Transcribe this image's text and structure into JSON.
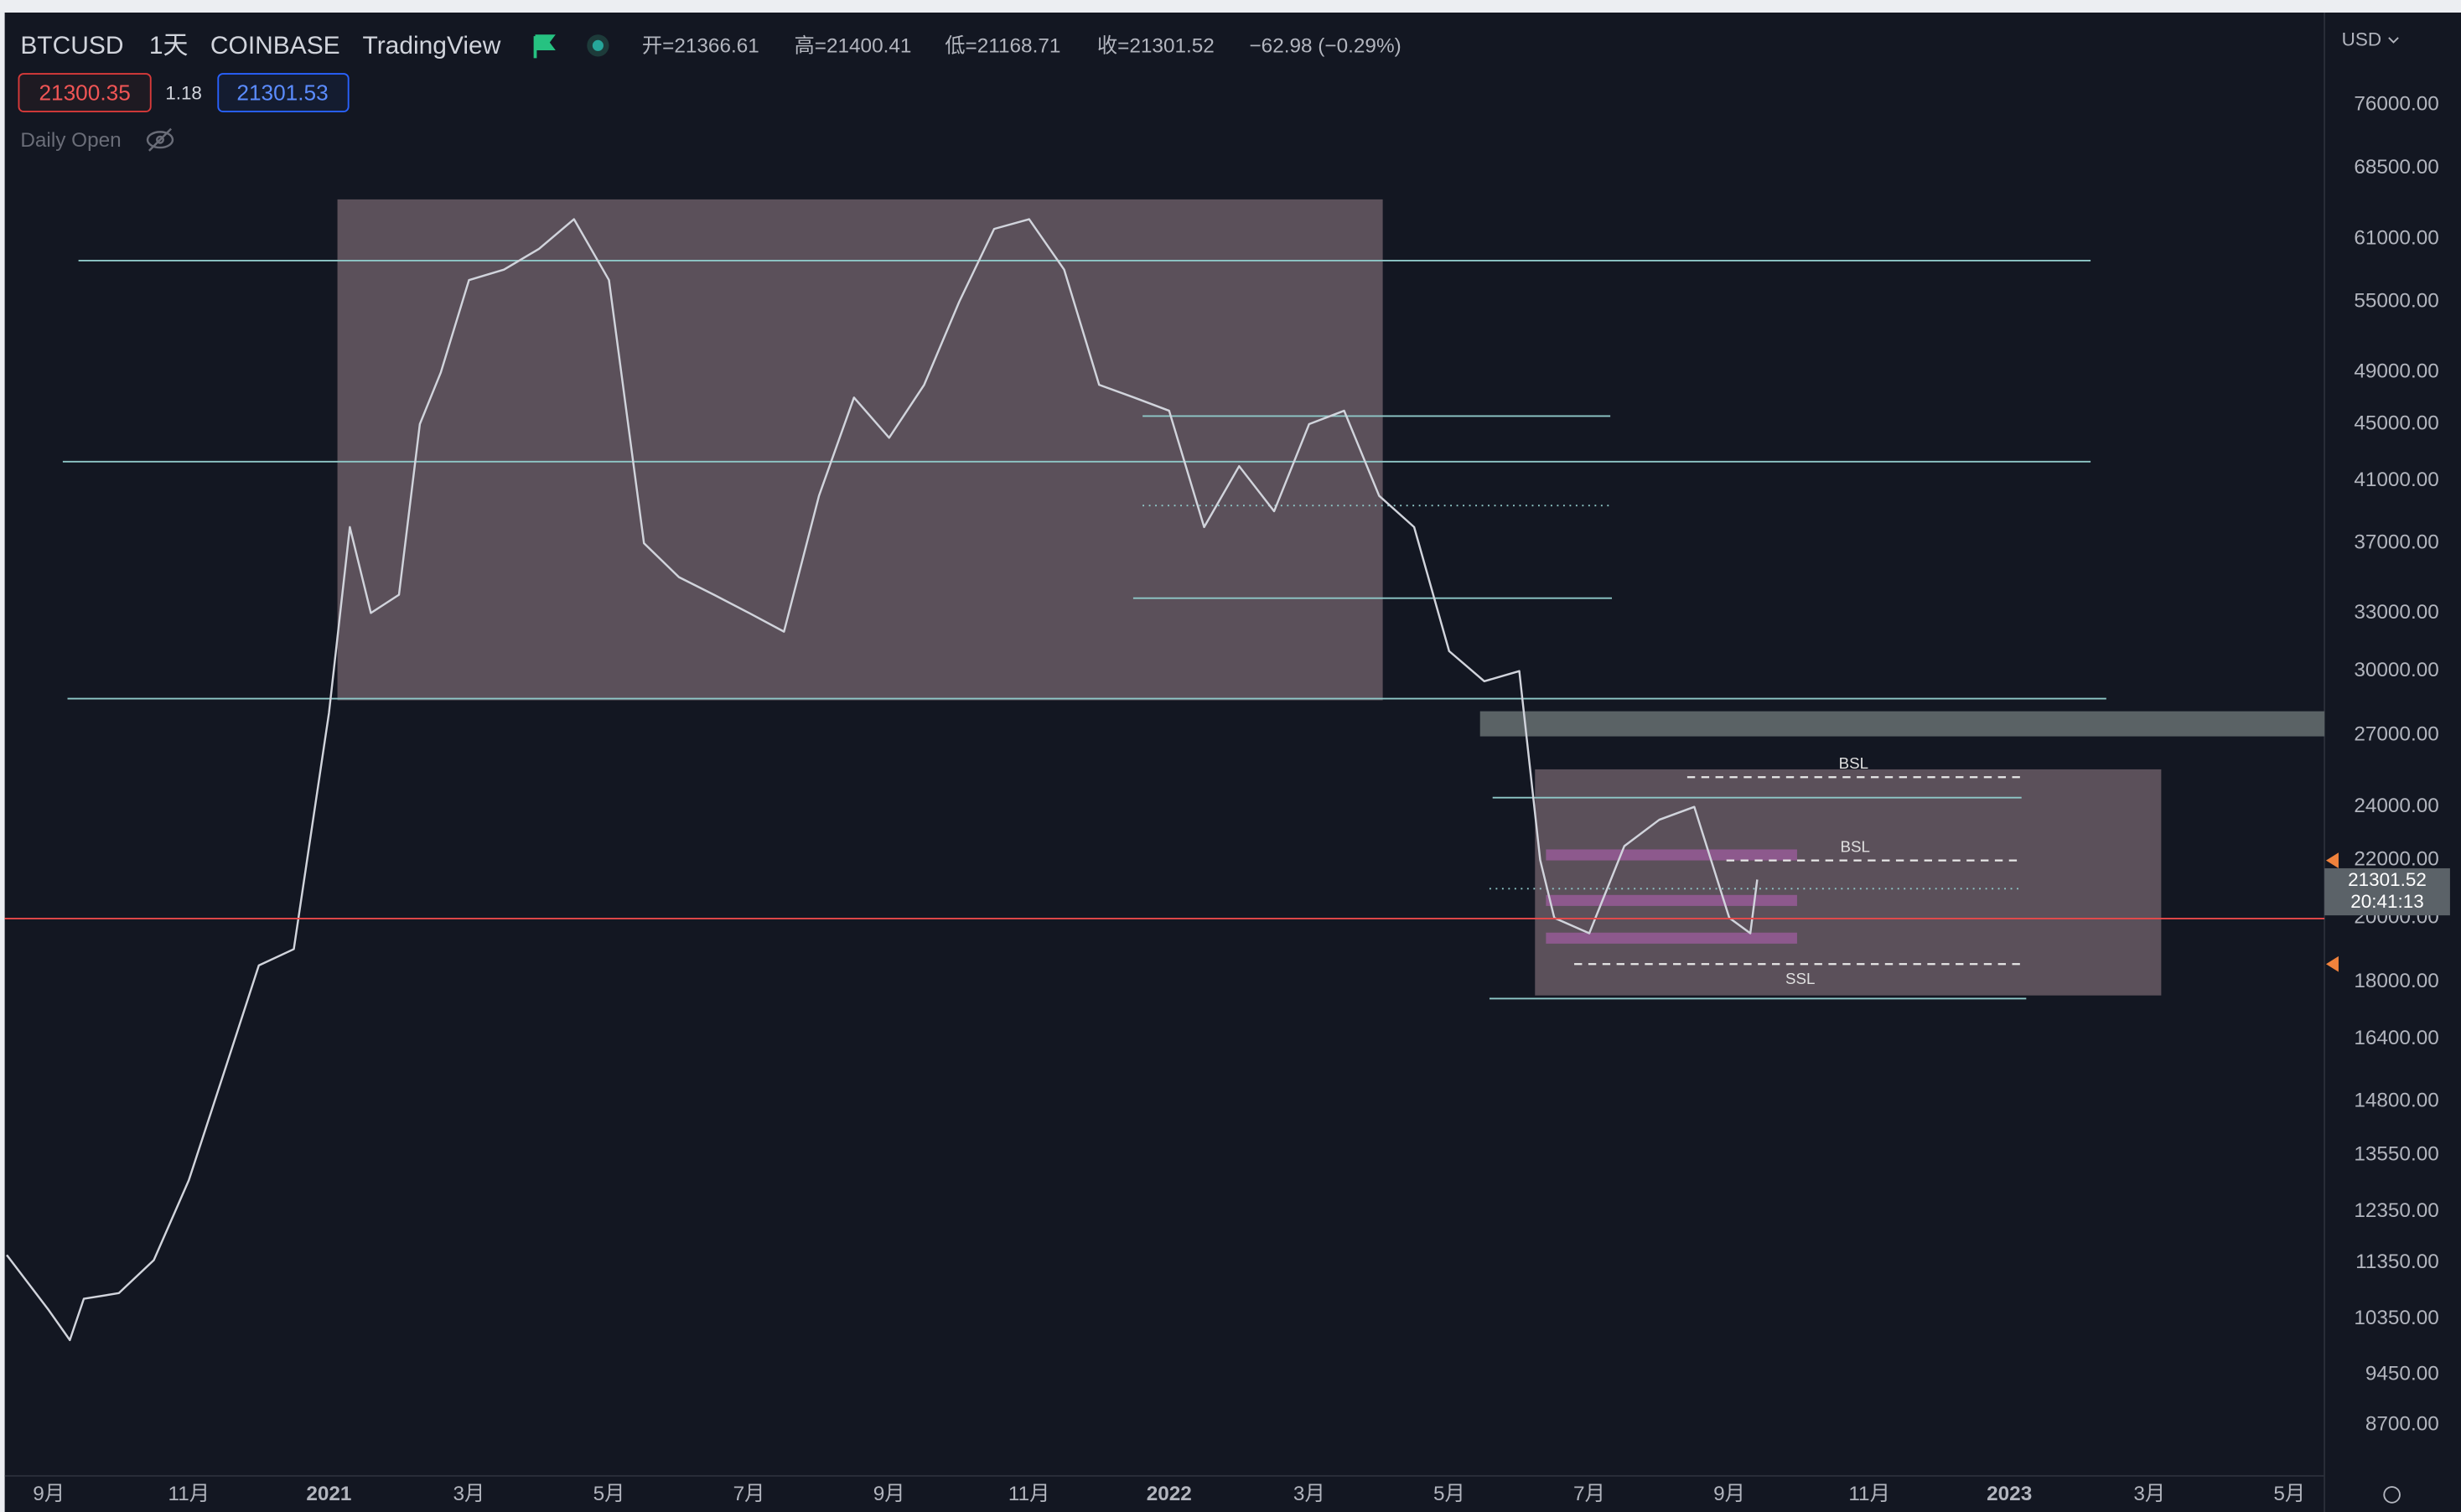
{
  "header": {
    "symbol": "BTCUSD",
    "interval": "1天",
    "exchange": "COINBASE",
    "source": "TradingView",
    "open": "开=21366.61",
    "high": "高=21400.41",
    "low": "低=21168.71",
    "close": "收=21301.52",
    "change": "−62.98 (−0.29%)",
    "bid": "21300.35",
    "spread": "1.18",
    "ask": "21301.53",
    "indicator": "Daily Open",
    "currency": "USD",
    "last_price": "21301.52",
    "countdown": "20:41:13"
  },
  "annotations": [
    "BSL",
    "BSL",
    "SSL"
  ],
  "chart_data": {
    "type": "line",
    "color": "#d1d4dc",
    "log_scale": true,
    "grid": false,
    "x": [
      -0.6,
      0,
      0.3,
      0.5,
      1,
      1.5,
      2,
      2.5,
      3,
      3.5,
      4,
      4.3,
      4.6,
      5,
      5.3,
      5.6,
      6,
      6.5,
      7,
      7.5,
      8,
      8.5,
      9,
      9.5,
      10,
      10.5,
      11,
      11.5,
      12,
      12.5,
      13,
      13.5,
      14,
      14.5,
      15,
      15.5,
      16,
      16.5,
      17,
      17.5,
      18,
      18.5,
      19,
      19.5,
      20,
      20.5,
      21,
      21.3,
      21.5,
      22,
      22.5,
      23,
      23.5,
      24,
      24.3,
      24.4
    ],
    "values": [
      11500,
      10500,
      10000,
      10700,
      10800,
      11400,
      13000,
      15500,
      18500,
      19000,
      28000,
      38000,
      33000,
      34000,
      45000,
      49000,
      57000,
      58000,
      60000,
      63000,
      57000,
      37000,
      35000,
      34000,
      33000,
      32000,
      40000,
      47000,
      44000,
      48000,
      55000,
      62000,
      63000,
      58000,
      48000,
      47000,
      46000,
      38000,
      42000,
      39000,
      45000,
      46000,
      40000,
      38000,
      31000,
      29500,
      30000,
      22000,
      20000,
      19500,
      22500,
      23500,
      24000,
      20000,
      19500,
      21301.52
    ],
    "xlim": [
      -0.63,
      32.5
    ],
    "xticks": [
      {
        "value": 0,
        "label": "9月"
      },
      {
        "value": 2,
        "label": "11月"
      },
      {
        "value": 4,
        "label": "2021"
      },
      {
        "value": 6,
        "label": "3月"
      },
      {
        "value": 8,
        "label": "5月"
      },
      {
        "value": 10,
        "label": "7月"
      },
      {
        "value": 12,
        "label": "9月"
      },
      {
        "value": 14,
        "label": "11月"
      },
      {
        "value": 16,
        "label": "2022"
      },
      {
        "value": 18,
        "label": "3月"
      },
      {
        "value": 20,
        "label": "5月"
      },
      {
        "value": 22,
        "label": "7月"
      },
      {
        "value": 24,
        "label": "9月"
      },
      {
        "value": 26,
        "label": "11月"
      },
      {
        "value": 28,
        "label": "2023"
      },
      {
        "value": 30,
        "label": "3月"
      },
      {
        "value": 32,
        "label": "5月"
      }
    ],
    "ylim": [
      8000,
      88000
    ],
    "yticks": [
      {
        "value": 76000,
        "label": "76000.00"
      },
      {
        "value": 68500,
        "label": "68500.00"
      },
      {
        "value": 61000,
        "label": "61000.00"
      },
      {
        "value": 55000,
        "label": "55000.00"
      },
      {
        "value": 49000,
        "label": "49000.00"
      },
      {
        "value": 45000,
        "label": "45000.00"
      },
      {
        "value": 41000,
        "label": "41000.00"
      },
      {
        "value": 37000,
        "label": "37000.00"
      },
      {
        "value": 33000,
        "label": "33000.00"
      },
      {
        "value": 30000,
        "label": "30000.00"
      },
      {
        "value": 27000,
        "label": "27000.00"
      },
      {
        "value": 24000,
        "label": "24000.00"
      },
      {
        "value": 22000,
        "label": "22000.00"
      },
      {
        "value": 20000,
        "label": "20000.00"
      },
      {
        "value": 18000,
        "label": "18000.00"
      },
      {
        "value": 16400,
        "label": "16400.00"
      },
      {
        "value": 14800,
        "label": "14800.00"
      },
      {
        "value": 13550,
        "label": "13550.00"
      },
      {
        "value": 12350,
        "label": "12350.00"
      },
      {
        "value": 11350,
        "label": "11350.00"
      },
      {
        "value": 10350,
        "label": "10350.00"
      },
      {
        "value": 9450,
        "label": "9450.00"
      },
      {
        "value": 8700,
        "label": "8700.00"
      }
    ]
  }
}
